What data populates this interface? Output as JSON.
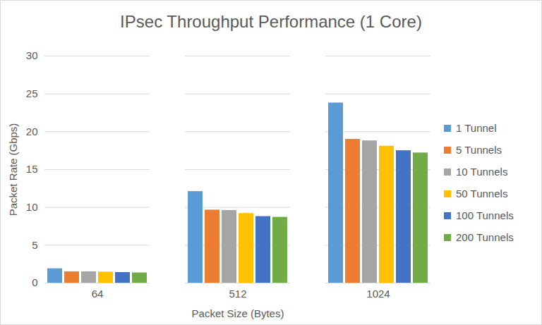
{
  "chart_data": {
    "type": "bar",
    "title": "IPsec Throughput Performance (1 Core)",
    "x_label": "Packet Size (Bytes)",
    "y_label": "Packet Rate (Gbps)",
    "categories": [
      "64",
      "512",
      "1024"
    ],
    "series": [
      {
        "name": "1 Tunnel",
        "color": "#5b9bd5",
        "values": [
          1.9,
          12.1,
          23.8
        ]
      },
      {
        "name": "5 Tunnels",
        "color": "#ed7d31",
        "values": [
          1.5,
          9.65,
          19.0
        ]
      },
      {
        "name": "10 Tunnels",
        "color": "#a5a5a5",
        "values": [
          1.5,
          9.6,
          18.8
        ]
      },
      {
        "name": "50 Tunnels",
        "color": "#ffc000",
        "values": [
          1.45,
          9.2,
          18.1
        ]
      },
      {
        "name": "100 Tunnels",
        "color": "#4472c4",
        "values": [
          1.4,
          8.8,
          17.5
        ]
      },
      {
        "name": "200 Tunnels",
        "color": "#70ad47",
        "values": [
          1.35,
          8.7,
          17.2
        ]
      }
    ],
    "ylim": [
      0,
      30
    ],
    "yticks": [
      0,
      5,
      10,
      15,
      20,
      25,
      30
    ],
    "grid": true,
    "legend": "right"
  }
}
